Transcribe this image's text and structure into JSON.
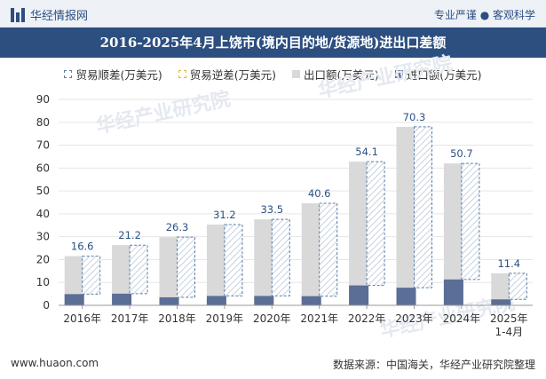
{
  "header": {
    "brand": "华经情报网",
    "slogan": "专业严谨 ● 客观科学"
  },
  "footer": {
    "website": "www.huaon.com",
    "source": "数据来源：中国海关，华经产业研究院整理"
  },
  "watermark": "华经产业研究院",
  "colors": {
    "title_bg": "#2c4f80",
    "export": "#d9d9d9",
    "import": "#5b6e96",
    "surplus_border": "#5b7fa8",
    "surplus_label": "#2c4f80"
  },
  "chart_data": {
    "type": "bar",
    "title": "2016-2025年4月上饶市(境内目的地/货源地)进出口差额",
    "categories": [
      "2016年",
      "2017年",
      "2018年",
      "2019年",
      "2020年",
      "2021年",
      "2022年",
      "2023年",
      "2024年",
      "2025年\n1-4月"
    ],
    "series": [
      {
        "name": "贸易顺差(万美元)",
        "values": [
          16.6,
          21.2,
          26.3,
          31.2,
          33.5,
          40.6,
          54.1,
          70.3,
          50.7,
          11.4
        ]
      },
      {
        "name": "贸易逆差(万美元)",
        "values": [
          0,
          0,
          0,
          0,
          0,
          0,
          0,
          0,
          0,
          0
        ]
      },
      {
        "name": "出口额(万美元)",
        "values": [
          21.5,
          26.3,
          29.8,
          35.3,
          37.6,
          44.6,
          62.8,
          78.0,
          62.0,
          14.0
        ]
      },
      {
        "name": "进口额(万美元)",
        "values": [
          4.9,
          5.1,
          3.5,
          4.1,
          4.1,
          4.0,
          8.7,
          7.7,
          11.3,
          2.6
        ]
      }
    ],
    "ylim": [
      0,
      90
    ],
    "yticks": [
      0,
      10,
      20,
      30,
      40,
      50,
      60,
      70,
      80,
      90
    ],
    "grid": true,
    "legend_position": "top"
  }
}
